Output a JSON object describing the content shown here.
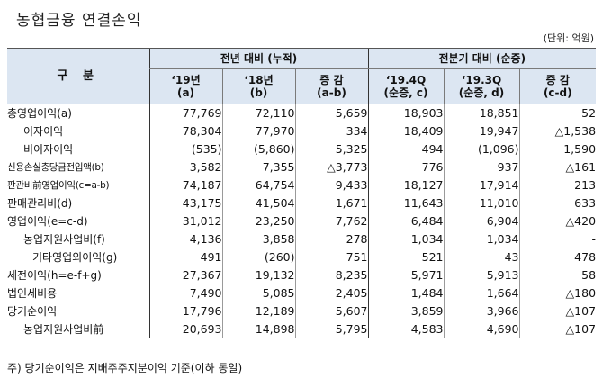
{
  "title": "농협금융 연결손익",
  "unit": "(단위: 억원)",
  "header": {
    "gubun": "구 분",
    "group1": "전년 대비 (누적)",
    "group2": "전분기 대비 (순증)",
    "cols": [
      {
        "line1": "‘19년",
        "line2": "(a)"
      },
      {
        "line1": "‘18년",
        "line2": "(b)"
      },
      {
        "line1": "증 감",
        "line2": "(a-b)"
      },
      {
        "line1": "‘19.4Q",
        "line2": "(순증, c)"
      },
      {
        "line1": "‘19.3Q",
        "line2": "(순증, d)"
      },
      {
        "line1": "증 감",
        "line2": "(c-d)"
      }
    ]
  },
  "rows": [
    {
      "label": "총영업이익(a)",
      "values": [
        "77,769",
        "72,110",
        "5,659",
        "18,903",
        "18,851",
        "52"
      ]
    },
    {
      "label": "이자이익",
      "values": [
        "78,304",
        "77,970",
        "334",
        "18,409",
        "19,947",
        "△1,538"
      ]
    },
    {
      "label": "비이자이익",
      "values": [
        "(535)",
        "(5,860)",
        "5,325",
        "494",
        "(1,096)",
        "1,590"
      ]
    },
    {
      "label": "신용손실충당금전입액(b)",
      "values": [
        "3,582",
        "7,355",
        "△3,773",
        "776",
        "937",
        "△161"
      ]
    },
    {
      "label": "판관비前영업이익(c=a-b)",
      "values": [
        "74,187",
        "64,754",
        "9,433",
        "18,127",
        "17,914",
        "213"
      ]
    },
    {
      "label": "판매관리비(d)",
      "values": [
        "43,175",
        "41,504",
        "1,671",
        "11,643",
        "11,010",
        "633"
      ]
    },
    {
      "label": "영업이익(e=c-d)",
      "values": [
        "31,012",
        "23,250",
        "7,762",
        "6,484",
        "6,904",
        "△420"
      ]
    },
    {
      "label": "농업지원사업비(f)",
      "values": [
        "4,136",
        "3,858",
        "278",
        "1,034",
        "1,034",
        "-"
      ]
    },
    {
      "label": "기타영업외이익(g)",
      "values": [
        "491",
        "(260)",
        "751",
        "521",
        "43",
        "478"
      ]
    },
    {
      "label": "세전이익(h=e-f+g)",
      "values": [
        "27,367",
        "19,132",
        "8,235",
        "5,971",
        "5,913",
        "58"
      ]
    },
    {
      "label": "법인세비용",
      "values": [
        "7,490",
        "5,085",
        "2,405",
        "1,484",
        "1,664",
        "△180"
      ]
    },
    {
      "label": "당기순이익",
      "values": [
        "17,796",
        "12,189",
        "5,607",
        "3,859",
        "3,966",
        "△107"
      ]
    },
    {
      "label": "농업지원사업비前",
      "values": [
        "20,693",
        "14,898",
        "5,795",
        "4,583",
        "4,690",
        "△107"
      ]
    }
  ],
  "footnote": "주) 당기순이익은 지배주주지분이익 기준(이하 동일)"
}
